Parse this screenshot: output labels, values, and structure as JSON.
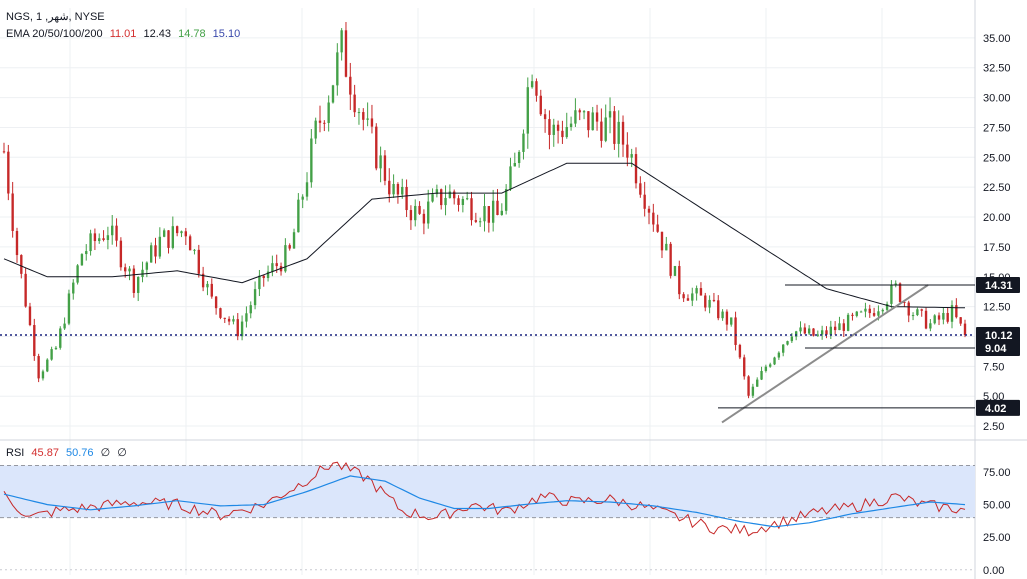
{
  "legend": {
    "symbol": "NGS, شهر, 1, NYSE",
    "ema_label": "EMA 20/50/100/200",
    "ema_values": [
      {
        "value": "11.01",
        "color": "#d32f2f"
      },
      {
        "value": "12.43",
        "color": "#131722"
      },
      {
        "value": "14.78",
        "color": "#43a047"
      },
      {
        "value": "15.10",
        "color": "#3949ab"
      }
    ]
  },
  "rsi_legend": {
    "label": "RSI",
    "values": [
      {
        "value": "45.87",
        "color": "#d32f2f"
      },
      {
        "value": "50.76",
        "color": "#1e88e5"
      },
      {
        "value": "∅",
        "color": "#131722"
      },
      {
        "value": "∅",
        "color": "#131722"
      }
    ]
  },
  "colors": {
    "up": "#43a047",
    "down": "#c62828",
    "ema": "#131722",
    "rsi": "#c62828",
    "rsi_ma": "#1e88e5",
    "band": "#dbe6fb",
    "trendline": "#8c8c8c"
  },
  "chart_data": {
    "type": "candlestick",
    "price_axis": {
      "ticks": [
        "2.50",
        "5.00",
        "7.50",
        "10.00",
        "12.50",
        "15.00",
        "17.50",
        "20.00",
        "22.50",
        "25.00",
        "27.50",
        "30.00",
        "32.50",
        "35.00"
      ],
      "ylim": [
        1.5,
        37.5
      ]
    },
    "rsi_axis": {
      "ticks": [
        "0.00",
        "25.00",
        "50.00",
        "75.00"
      ],
      "ylim": [
        -4,
        98
      ],
      "band": [
        40,
        80
      ]
    },
    "price_tags": [
      {
        "label": "14.31",
        "value": 14.31,
        "color": "#131722"
      },
      {
        "label": "10.12",
        "value": 10.12,
        "color": "#131722"
      },
      {
        "label": "9.04",
        "value": 9.04,
        "color": "#131722"
      },
      {
        "label": "4.02",
        "value": 4.02,
        "color": "#131722"
      }
    ],
    "anchors": [
      [
        0,
        25.5
      ],
      [
        3,
        17
      ],
      [
        8,
        6.8
      ],
      [
        12,
        9
      ],
      [
        18,
        17
      ],
      [
        24,
        19
      ],
      [
        30,
        14.5
      ],
      [
        36,
        18
      ],
      [
        42,
        19
      ],
      [
        48,
        13
      ],
      [
        54,
        10.5
      ],
      [
        60,
        15
      ],
      [
        66,
        17
      ],
      [
        72,
        27
      ],
      [
        78,
        34
      ],
      [
        84,
        27
      ],
      [
        90,
        22
      ],
      [
        96,
        20
      ],
      [
        102,
        22
      ],
      [
        108,
        21
      ],
      [
        114,
        20
      ],
      [
        118,
        24
      ],
      [
        122,
        33
      ],
      [
        126,
        27
      ],
      [
        132,
        28
      ],
      [
        138,
        28
      ],
      [
        144,
        26
      ],
      [
        150,
        20
      ],
      [
        156,
        14
      ],
      [
        162,
        13
      ],
      [
        168,
        11
      ],
      [
        172,
        5
      ],
      [
        176,
        7.5
      ],
      [
        182,
        10.5
      ],
      [
        188,
        10
      ],
      [
        194,
        11
      ],
      [
        200,
        12
      ],
      [
        206,
        14
      ],
      [
        210,
        12
      ],
      [
        214,
        11
      ],
      [
        219,
        12
      ],
      [
        222,
        10.12
      ]
    ],
    "ema_anchors": [
      [
        0,
        16.5
      ],
      [
        10,
        15
      ],
      [
        25,
        15
      ],
      [
        40,
        15.5
      ],
      [
        55,
        14.5
      ],
      [
        70,
        16.5
      ],
      [
        85,
        21.5
      ],
      [
        100,
        22
      ],
      [
        115,
        22
      ],
      [
        130,
        24.5
      ],
      [
        145,
        24.5
      ],
      [
        160,
        21
      ],
      [
        175,
        17.5
      ],
      [
        190,
        14
      ],
      [
        205,
        12.5
      ],
      [
        222,
        12.4
      ]
    ],
    "rsi_anchors": [
      [
        0,
        57
      ],
      [
        6,
        40
      ],
      [
        12,
        45
      ],
      [
        20,
        48
      ],
      [
        30,
        52
      ],
      [
        40,
        50
      ],
      [
        50,
        42
      ],
      [
        60,
        50
      ],
      [
        68,
        65
      ],
      [
        76,
        82
      ],
      [
        84,
        70
      ],
      [
        92,
        45
      ],
      [
        100,
        40
      ],
      [
        108,
        50
      ],
      [
        116,
        45
      ],
      [
        124,
        56
      ],
      [
        132,
        52
      ],
      [
        140,
        54
      ],
      [
        148,
        48
      ],
      [
        156,
        40
      ],
      [
        164,
        32
      ],
      [
        172,
        30
      ],
      [
        180,
        37
      ],
      [
        188,
        44
      ],
      [
        196,
        48
      ],
      [
        206,
        56
      ],
      [
        212,
        50
      ],
      [
        222,
        46
      ]
    ],
    "rsi_ma_anchors": [
      [
        0,
        58
      ],
      [
        10,
        50
      ],
      [
        20,
        46
      ],
      [
        30,
        49
      ],
      [
        40,
        53
      ],
      [
        50,
        49
      ],
      [
        60,
        50
      ],
      [
        70,
        60
      ],
      [
        80,
        72
      ],
      [
        88,
        68
      ],
      [
        96,
        55
      ],
      [
        104,
        47
      ],
      [
        112,
        47
      ],
      [
        120,
        50
      ],
      [
        130,
        53
      ],
      [
        140,
        52
      ],
      [
        150,
        49
      ],
      [
        160,
        44
      ],
      [
        170,
        37
      ],
      [
        178,
        33
      ],
      [
        186,
        36
      ],
      [
        196,
        43
      ],
      [
        206,
        48
      ],
      [
        214,
        52
      ],
      [
        222,
        50
      ]
    ],
    "candle_count": 223
  }
}
